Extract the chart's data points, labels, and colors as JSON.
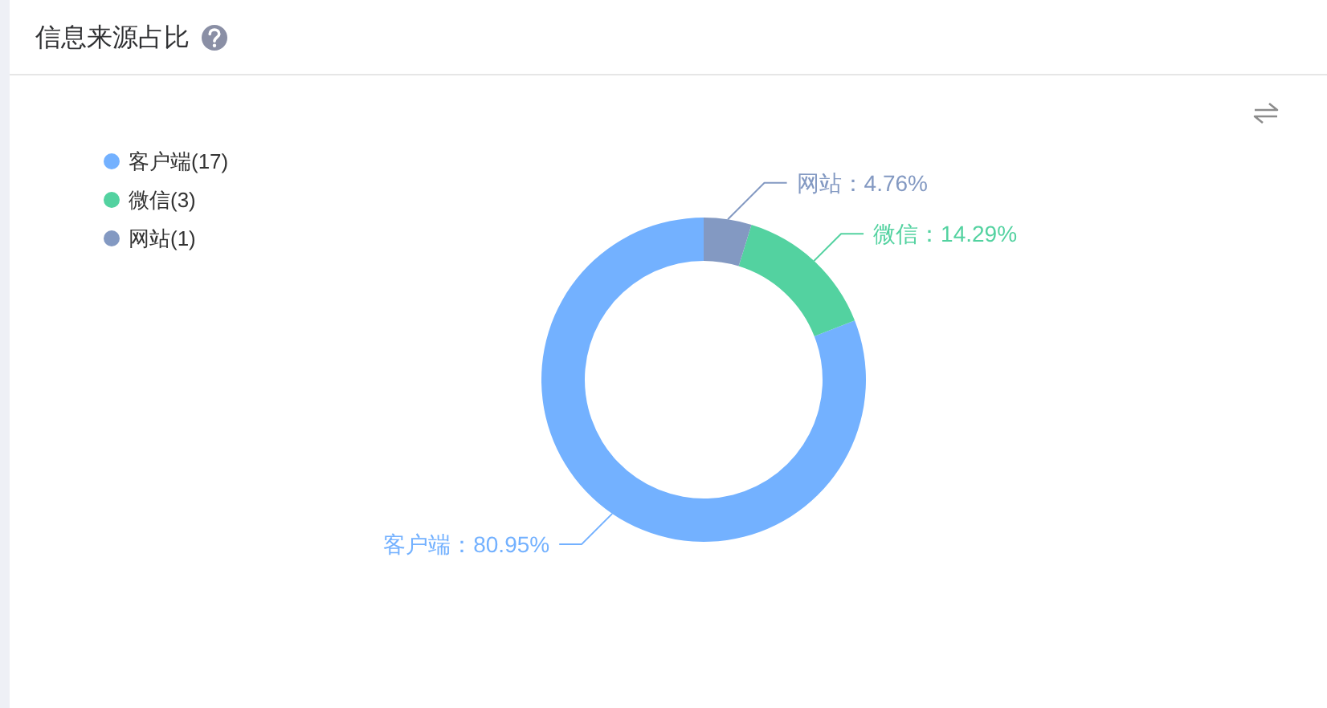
{
  "chart_data": {
    "type": "donut",
    "title": "信息来源占比",
    "categories": [
      "客户端(17)",
      "微信(3)",
      "网站(1)"
    ],
    "values": [
      80.95,
      14.29,
      4.76
    ],
    "colors": [
      "#73b1ff",
      "#53d2a0",
      "#8399c2"
    ],
    "value_labels": [
      "客户端：80.95%",
      "微信：14.29%",
      "网站：4.76%"
    ],
    "legend": "top left"
  }
}
